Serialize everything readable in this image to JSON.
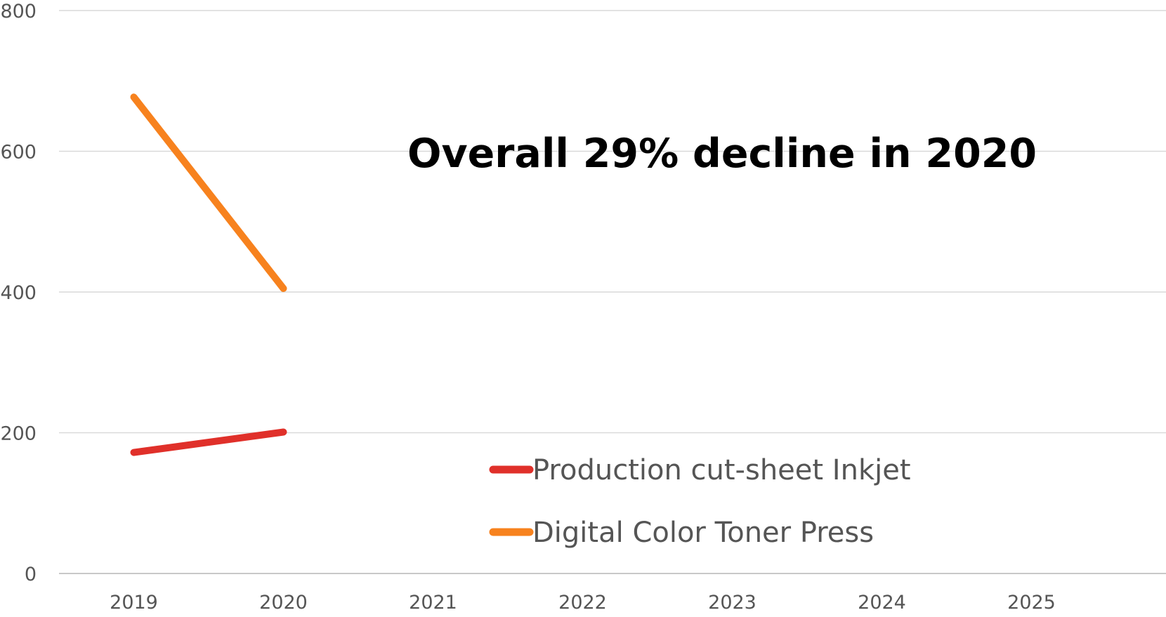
{
  "chart_data": {
    "type": "line",
    "categories": [
      "2019",
      "2020",
      "2021",
      "2022",
      "2023",
      "2024",
      "2025"
    ],
    "series": [
      {
        "name": "Production cut-sheet Inkjet",
        "color": "#e0302a",
        "values": [
          172,
          201,
          null,
          null,
          null,
          null,
          null
        ]
      },
      {
        "name": "Digital Color Toner Press",
        "color": "#f7821e",
        "values": [
          677,
          405,
          null,
          null,
          null,
          null,
          null
        ]
      }
    ],
    "ylim": [
      0,
      800
    ],
    "yticks": [
      "0",
      "200",
      "400",
      "600",
      "800"
    ],
    "grid": true,
    "legend": "bottom-right",
    "annotation": "Overall 29% decline in 2020",
    "title": "",
    "xlabel": "",
    "ylabel": ""
  }
}
